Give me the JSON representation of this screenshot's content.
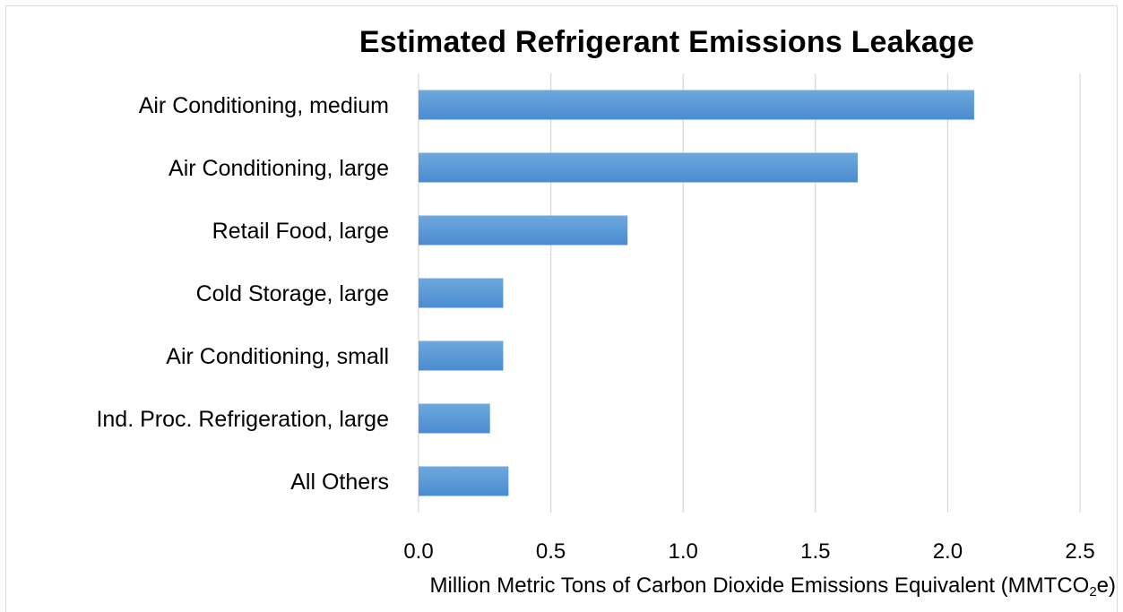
{
  "chart_data": {
    "type": "bar",
    "orientation": "horizontal",
    "title": "Estimated Refrigerant Emissions Leakage",
    "xlabel": {
      "prefix": "Million Metric Tons of Carbon Dioxide Emissions Equivalent (MMTCO",
      "sub": "2",
      "suffix": "e)"
    },
    "ylabel": "",
    "categories": [
      "Air Conditioning, medium",
      "Air Conditioning, large",
      "Retail Food, large",
      "Cold Storage, large",
      "Air Conditioning, small",
      "Ind. Proc. Refrigeration, large",
      "All Others"
    ],
    "values": [
      2.1,
      1.66,
      0.79,
      0.32,
      0.32,
      0.27,
      0.34
    ],
    "xlim": [
      0,
      2.5
    ],
    "xticks": [
      "0.0",
      "0.5",
      "1.0",
      "1.5",
      "2.0",
      "2.5"
    ],
    "grid": true,
    "legend": "none",
    "bar_color": "#5b9bd5"
  }
}
